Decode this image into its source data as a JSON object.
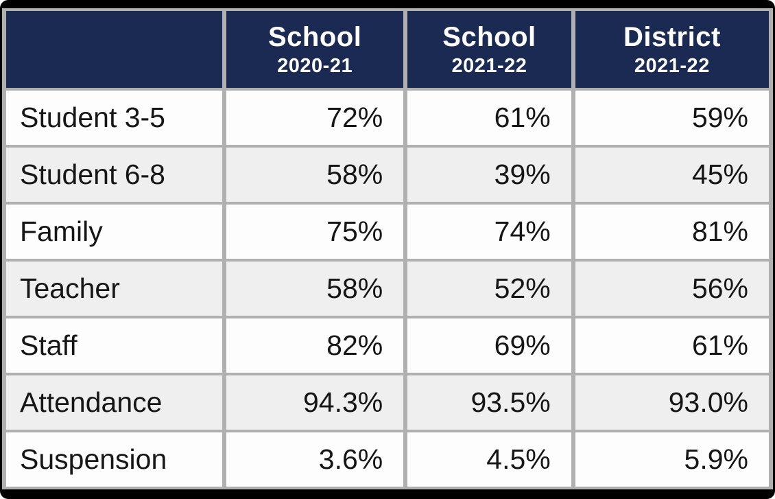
{
  "colors": {
    "header_bg": "#1b2a52",
    "header_text": "#ffffff",
    "grid_line": "#b0b0b0",
    "frame_border": "#000000",
    "row_white": "#fdfdfd",
    "row_shaded": "#efefef",
    "body_text": "#161616"
  },
  "chart_data": {
    "type": "table",
    "columns": [
      {
        "title": "",
        "subtitle": ""
      },
      {
        "title": "School",
        "subtitle": "2020-21"
      },
      {
        "title": "School",
        "subtitle": "2021-22"
      },
      {
        "title": "District",
        "subtitle": "2021-22"
      }
    ],
    "rows": [
      {
        "label": "Student 3-5",
        "values": [
          "72%",
          "61%",
          "59%"
        ]
      },
      {
        "label": "Student 6-8",
        "values": [
          "58%",
          "39%",
          "45%"
        ]
      },
      {
        "label": "Family",
        "values": [
          "75%",
          "74%",
          "81%"
        ]
      },
      {
        "label": "Teacher",
        "values": [
          "58%",
          "52%",
          "56%"
        ]
      },
      {
        "label": "Staff",
        "values": [
          "82%",
          "69%",
          "61%"
        ]
      },
      {
        "label": "Attendance",
        "values": [
          "94.3%",
          "93.5%",
          "93.0%"
        ]
      },
      {
        "label": "Suspension",
        "values": [
          "3.6%",
          "4.5%",
          "5.9%"
        ]
      }
    ]
  }
}
